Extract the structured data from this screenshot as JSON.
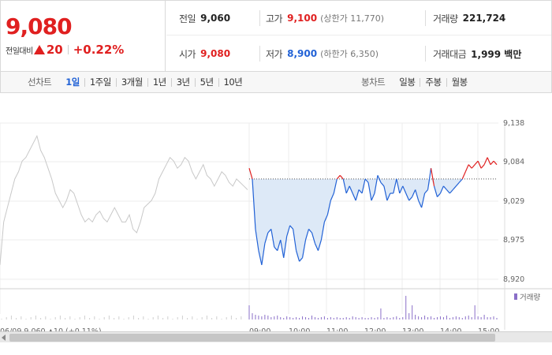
{
  "quote": {
    "price": "9,080",
    "change_label": "전일대비",
    "change_amount": "20",
    "change_pct": "+0.22%",
    "stats": {
      "prev_close_label": "전일",
      "prev_close": "9,060",
      "high_label": "고가",
      "high": "9,100",
      "upper_limit": "(상한가 11,770)",
      "volume_label": "거래량",
      "volume": "221,724",
      "open_label": "시가",
      "open": "9,080",
      "low_label": "저가",
      "low": "8,900",
      "lower_limit": "(하한가 6,350)",
      "value_label": "거래대금",
      "value": "1,999 백만"
    }
  },
  "toolbar": {
    "line_chart_label": "선차트",
    "periods": [
      "1일",
      "1주일",
      "3개월",
      "1년",
      "3년",
      "5년",
      "10년"
    ],
    "active_period": "1일",
    "candle_chart_label": "봉차트",
    "candles": [
      "일봉",
      "주봉",
      "월봉"
    ]
  },
  "chart_data": {
    "type": "line",
    "y_ticks": [
      "9,138",
      "9,084",
      "9,029",
      "8,975",
      "8,920"
    ],
    "ylim": [
      8920,
      9138
    ],
    "reference_price": 9060,
    "volume_legend": "거래량",
    "colors": {
      "up": "#e02020",
      "down": "#2262d6",
      "prev_day": "#c8c8c8",
      "fill": "#dde9f7",
      "volume": "#8a6fc8"
    },
    "prev_day_series": [
      8940,
      9000,
      9020,
      9040,
      9060,
      9070,
      9085,
      9090,
      9100,
      9110,
      9120,
      9100,
      9090,
      9075,
      9060,
      9040,
      9030,
      9020,
      9030,
      9045,
      9040,
      9025,
      9010,
      9000,
      9005,
      9000,
      9010,
      9015,
      9005,
      9000,
      9010,
      9020,
      9010,
      9000,
      9000,
      9010,
      8990,
      8985,
      9000,
      9020,
      9025,
      9030,
      9040,
      9060,
      9070,
      9080,
      9090,
      9085,
      9075,
      9080,
      9090,
      9085,
      9070,
      9060,
      9070,
      9080,
      9065,
      9060,
      9050,
      9060,
      9070,
      9065,
      9055,
      9050,
      9060,
      9055,
      9050,
      9045
    ],
    "today_series": [
      9075,
      9060,
      8990,
      8960,
      8940,
      8970,
      8985,
      8990,
      8965,
      8960,
      8975,
      8950,
      8980,
      8995,
      8990,
      8960,
      8945,
      8950,
      8975,
      8990,
      8985,
      8970,
      8960,
      8975,
      9000,
      9010,
      9030,
      9040,
      9060,
      9065,
      9060,
      9040,
      9050,
      9040,
      9030,
      9045,
      9040,
      9060,
      9055,
      9030,
      9040,
      9065,
      9055,
      9050,
      9030,
      9040,
      9040,
      9060,
      9040,
      9050,
      9040,
      9030,
      9035,
      9045,
      9030,
      9020,
      9040,
      9045,
      9075,
      9050,
      9035,
      9040,
      9050,
      9045,
      9040,
      9045,
      9050,
      9055,
      9060,
      9070,
      9080,
      9075,
      9080,
      9085,
      9075,
      9080,
      9090,
      9080,
      9085,
      9080
    ],
    "x_ticks": [
      "09:00",
      "10:00",
      "11:00",
      "12:00",
      "13:00",
      "14:00",
      "15:00"
    ],
    "prev_day_footer": "06/09  9,060  ▲10  (+0.11%)"
  }
}
